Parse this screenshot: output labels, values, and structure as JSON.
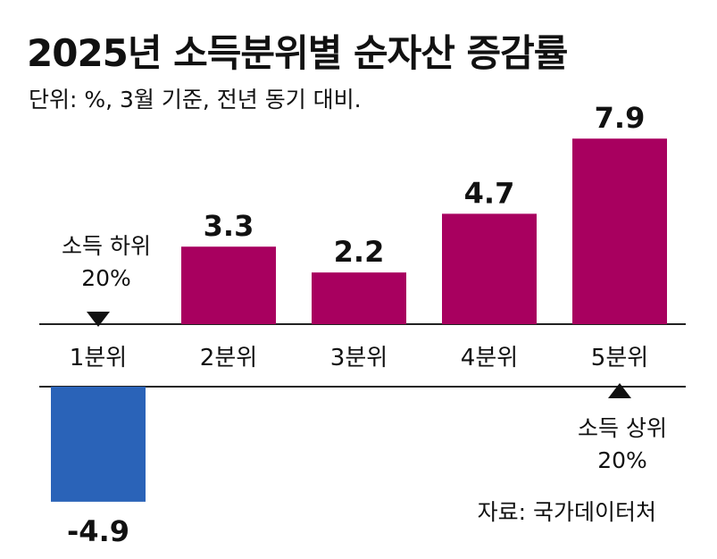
{
  "title": "2025년 소득분위별 순자산 증감률",
  "subtitle": "단위: %, 3월 기준, 전년 동기 대비.",
  "source": "자료: 국가데이터처",
  "low_note": {
    "line1": "소득 하위",
    "line2": "20%"
  },
  "high_note": {
    "line1": "소득 상위",
    "line2": "20%"
  },
  "colors": {
    "positive": "#a8005f",
    "negative": "#2a63b8",
    "axis": "#222222"
  },
  "chart_data": {
    "type": "bar",
    "categories": [
      "1분위",
      "2분위",
      "3분위",
      "4분위",
      "5분위"
    ],
    "values": [
      -4.9,
      3.3,
      2.2,
      4.7,
      7.9
    ],
    "value_labels": [
      "-4.9",
      "3.3",
      "2.2",
      "4.7",
      "7.9"
    ],
    "title": "2025년 소득분위별 순자산 증감률",
    "unit": "%",
    "ylim": [
      -4.9,
      7.9
    ],
    "grid": false,
    "legend": "none"
  }
}
